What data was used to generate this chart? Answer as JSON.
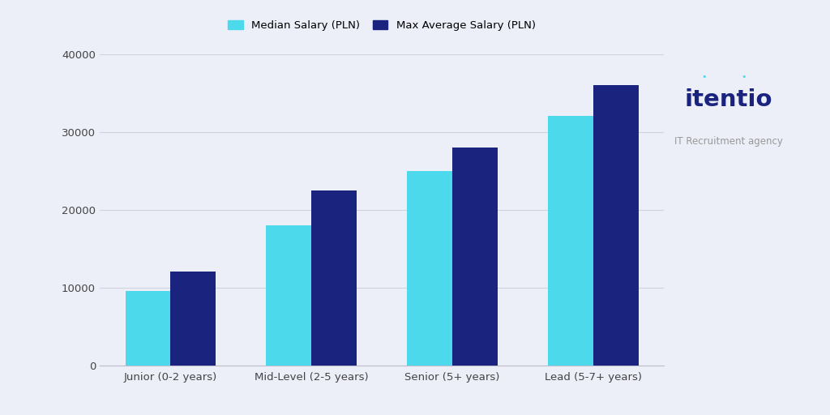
{
  "categories": [
    "Junior (0-2 years)",
    "Mid-Level (2-5 years)",
    "Senior (5+ years)",
    "Lead (5-7+ years)"
  ],
  "median_salary": [
    9500,
    18000,
    25000,
    32000
  ],
  "max_avg_salary": [
    12000,
    22500,
    28000,
    36000
  ],
  "color_median": "#4DD9EC",
  "color_max": "#1A237E",
  "background_color": "#ECEEF8",
  "ylim": [
    0,
    40000
  ],
  "yticks": [
    0,
    10000,
    20000,
    30000,
    40000
  ],
  "legend_median": "Median Salary (PLN)",
  "legend_max": "Max Average Salary (PLN)",
  "logo_text": "itentio",
  "logo_sub": "IT Recruitment agency",
  "logo_color": "#1A237E",
  "logo_sub_color": "#999999",
  "bar_width": 0.32,
  "grid_color": "#D0D2E0"
}
